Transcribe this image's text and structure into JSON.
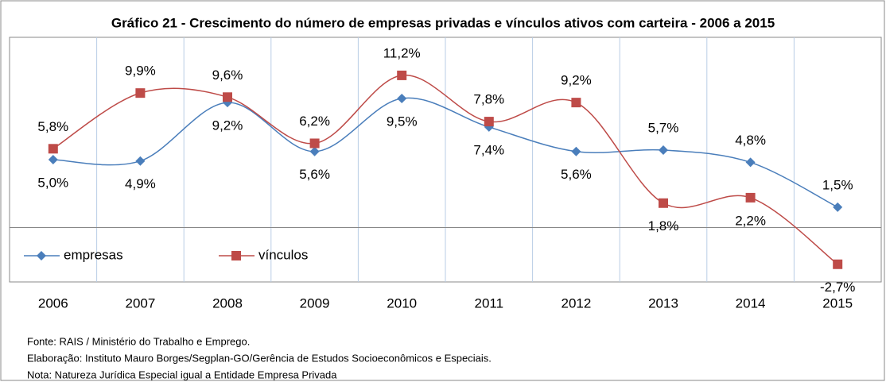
{
  "chart_data": {
    "type": "line",
    "title": "Gráfico  21 - Crescimento do número de empresas privadas e vínculos ativos com carteira - 2006 a 2015",
    "categories": [
      "2006",
      "2007",
      "2008",
      "2009",
      "2010",
      "2011",
      "2012",
      "2013",
      "2014",
      "2015"
    ],
    "series": [
      {
        "name": "empresas",
        "color": "#4a7ebb",
        "marker": "diamond",
        "values": [
          5.0,
          4.9,
          9.2,
          5.6,
          9.5,
          7.4,
          5.6,
          5.7,
          4.8,
          1.5
        ],
        "value_labels": [
          "5,0%",
          "4,9%",
          "9,2%",
          "5,6%",
          "9,5%",
          "7,4%",
          "5,6%",
          "5,7%",
          "4,8%",
          "1,5%"
        ]
      },
      {
        "name": "vínculos",
        "color": "#be4b48",
        "marker": "square",
        "values": [
          5.8,
          9.9,
          9.6,
          6.2,
          11.2,
          7.8,
          9.2,
          1.8,
          2.2,
          -2.7
        ],
        "value_labels": [
          "5,8%",
          "9,9%",
          "9,6%",
          "6,2%",
          "11,2%",
          "7,8%",
          "9,2%",
          "1,8%",
          "2,2%",
          "-2,7%"
        ]
      }
    ],
    "ylim": [
      -4,
      14
    ],
    "smooth": true,
    "legend": "bottom-left",
    "footnotes": [
      "Fonte: RAIS / Ministério do Trabalho e Emprego.",
      "Elaboração: Instituto Mauro Borges/Segplan-GO/Gerência de Estudos Socioeconômicos e Especiais.",
      "Nota: Natureza Jurídica Especial igual a Entidade Empresa Privada"
    ]
  }
}
